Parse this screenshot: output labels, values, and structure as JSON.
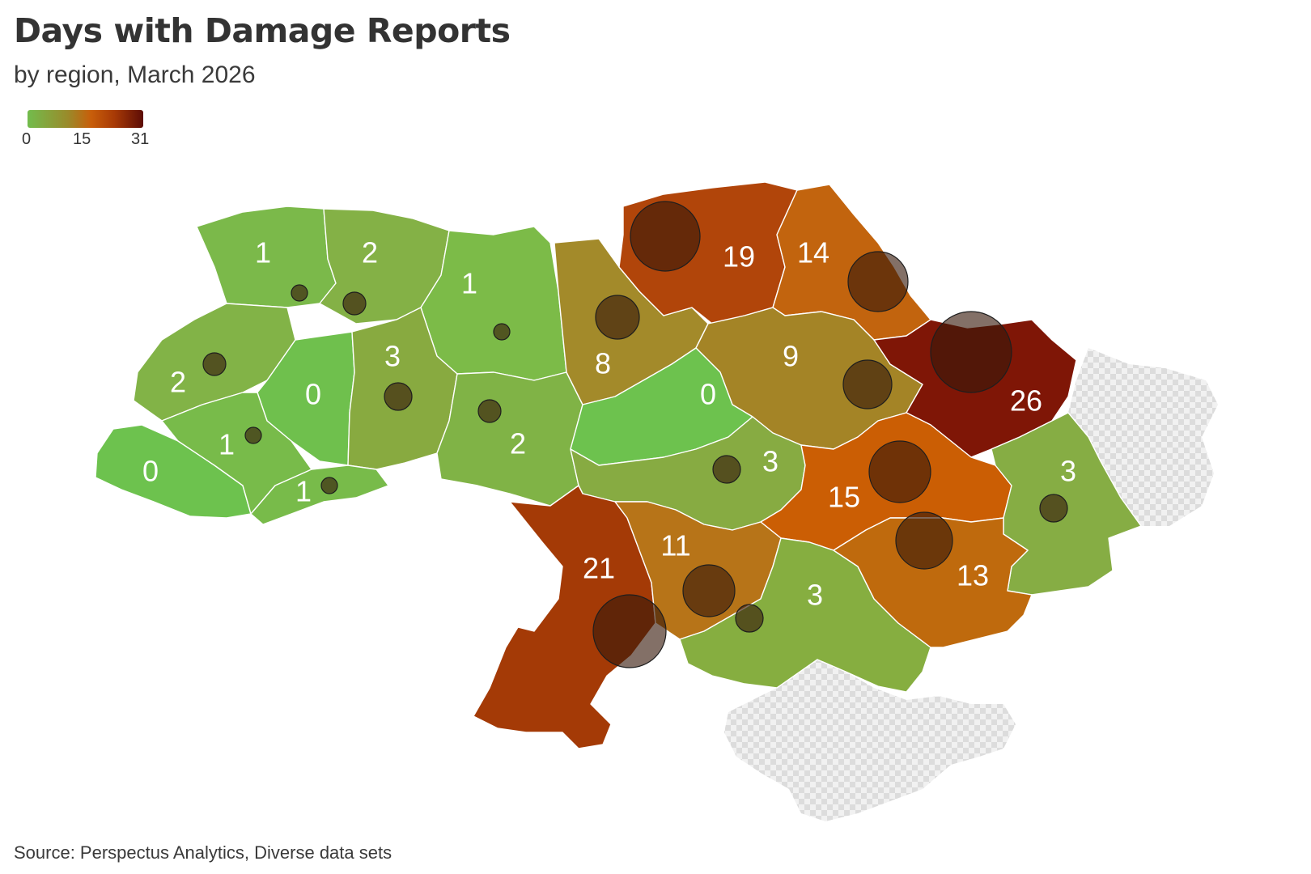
{
  "title": "Days with Damage Reports",
  "subtitle": "by region, March 2026",
  "legend": {
    "ticks": [
      "0",
      "15",
      "31"
    ],
    "min": 0,
    "mid": 15,
    "max": 31,
    "colors": [
      "#72bc4d",
      "#9a8a2a",
      "#c85e0a",
      "#a83a06",
      "#5c0c06"
    ]
  },
  "source": "Source: Perspectus Analytics, Diverse data sets",
  "map_data": {
    "type": "choropleth",
    "regions": [
      {
        "id": "volyn",
        "value": 1,
        "label": "1",
        "color": "#7bb94a",
        "bubble": "small"
      },
      {
        "id": "rivne",
        "value": 2,
        "label": "2",
        "color": "#84b146",
        "bubble": "small"
      },
      {
        "id": "zhytomyr",
        "value": 1,
        "label": "1",
        "color": "#7cbb48",
        "bubble": "small"
      },
      {
        "id": "lviv",
        "value": 2,
        "label": "2",
        "color": "#82b347",
        "bubble": "small"
      },
      {
        "id": "ternopil",
        "value": 0,
        "label": "0",
        "color": "#6fc04d",
        "bubble": "none"
      },
      {
        "id": "khmelnytskyi",
        "value": 3,
        "label": "3",
        "color": "#88aa40",
        "bubble": "small"
      },
      {
        "id": "vinnytsia",
        "value": 2,
        "label": "2",
        "color": "#80b346",
        "bubble": "small"
      },
      {
        "id": "zakarpattia",
        "value": 0,
        "label": "0",
        "color": "#6dc24e",
        "bubble": "none"
      },
      {
        "id": "ivano-frankivsk",
        "value": 1,
        "label": "1",
        "color": "#78bb4a",
        "bubble": "small"
      },
      {
        "id": "chernivtsi",
        "value": 1,
        "label": "1",
        "color": "#78bb4a",
        "bubble": "small"
      },
      {
        "id": "kyiv",
        "value": 8,
        "label": "8",
        "color": "#a38a2a",
        "bubble": "medium"
      },
      {
        "id": "chernihiv",
        "value": 19,
        "label": "19",
        "color": "#b1450a",
        "bubble": "large"
      },
      {
        "id": "sumy",
        "value": 14,
        "label": "14",
        "color": "#c2640e",
        "bubble": "large"
      },
      {
        "id": "poltava",
        "value": 9,
        "label": "9",
        "color": "#a48426",
        "bubble": "medium"
      },
      {
        "id": "cherkasy",
        "value": 0,
        "label": "0",
        "color": "#6dc24e",
        "bubble": "none"
      },
      {
        "id": "kharkiv",
        "value": 26,
        "label": "26",
        "color": "#7f1606",
        "bubble": "xlarge"
      },
      {
        "id": "kirovohrad",
        "value": 3,
        "label": "3",
        "color": "#87ab42",
        "bubble": "small"
      },
      {
        "id": "dnipropetrovsk",
        "value": 15,
        "label": "15",
        "color": "#cb5e04",
        "bubble": "large"
      },
      {
        "id": "luhansk",
        "value": 3,
        "label": "3",
        "color": "#86ad44",
        "bubble": "small"
      },
      {
        "id": "odesa",
        "value": 21,
        "label": "21",
        "color": "#a43a06",
        "bubble": "xlarge"
      },
      {
        "id": "mykolaiv",
        "value": 11,
        "label": "11",
        "color": "#b77418",
        "bubble": "large"
      },
      {
        "id": "kherson",
        "value": 3,
        "label": "3",
        "color": "#86ae40",
        "bubble": "small"
      },
      {
        "id": "zaporizhzhia",
        "value": 13,
        "label": "13",
        "color": "#bf6a0d",
        "bubble": "large"
      }
    ],
    "no_data_areas": [
      "crimea",
      "occupied-east"
    ]
  }
}
